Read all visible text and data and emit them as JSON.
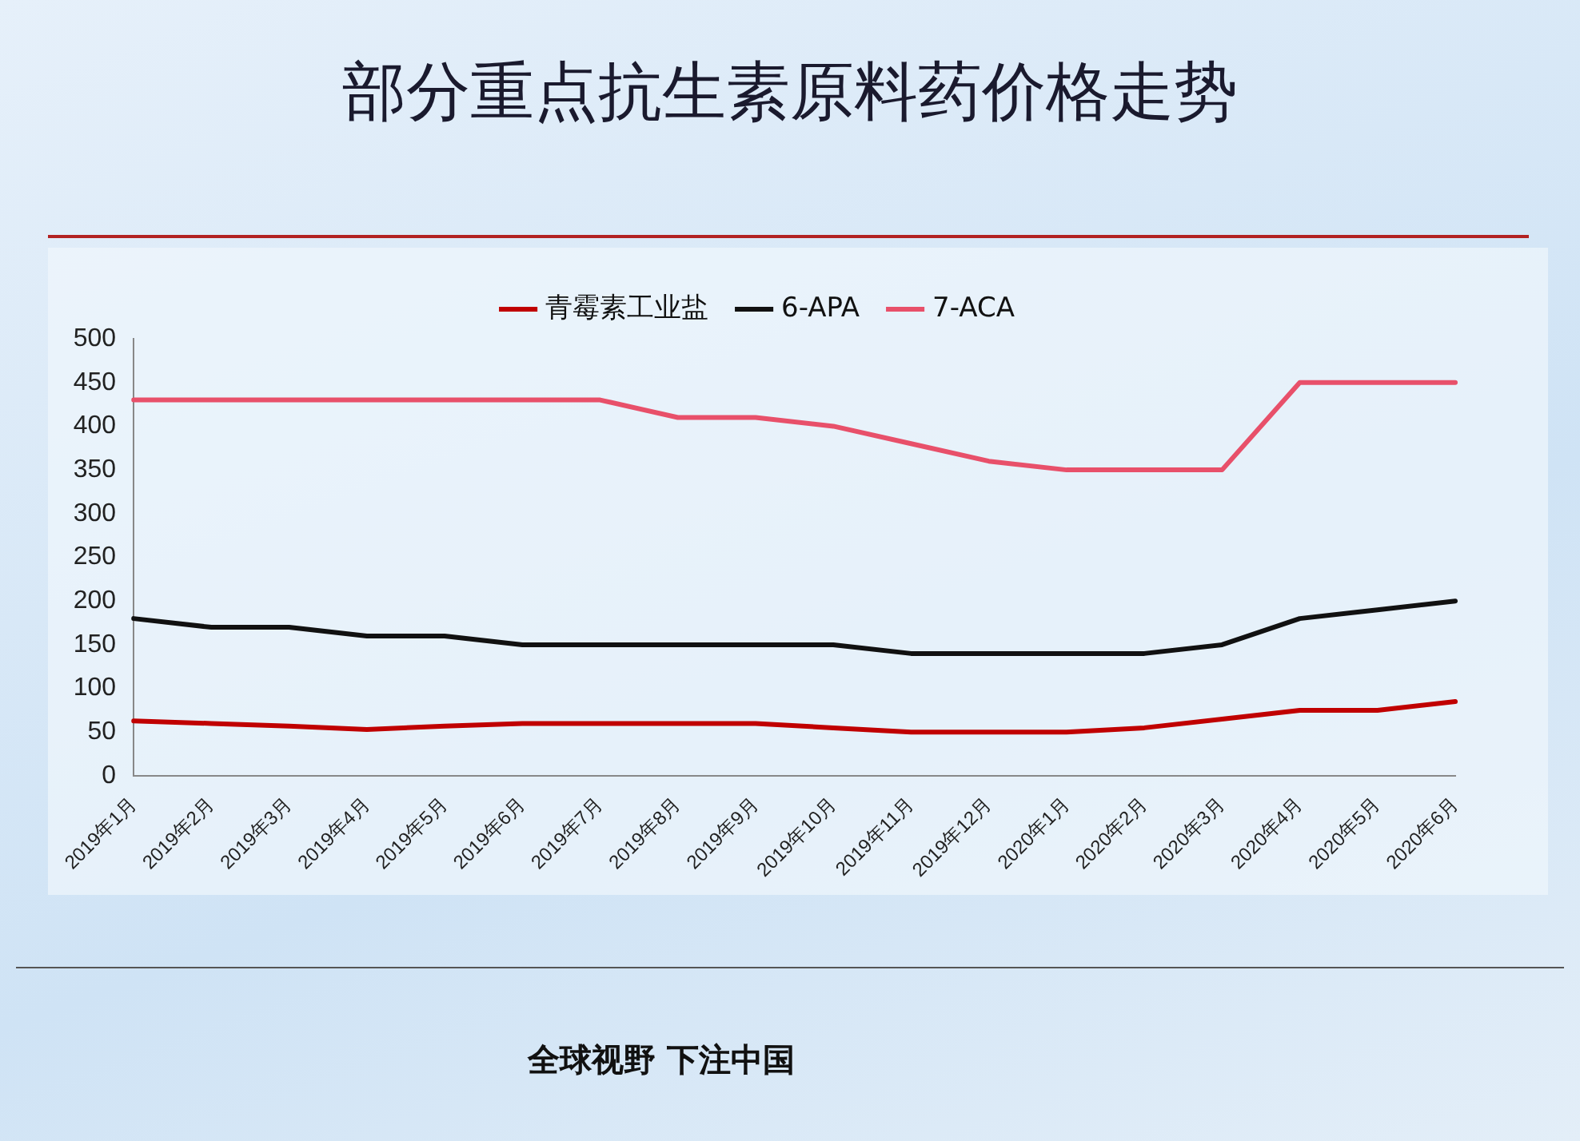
{
  "chart_data": {
    "type": "line",
    "title": "部分重点抗生素原料药价格走势",
    "categories": [
      "2019年1月",
      "2019年2月",
      "2019年3月",
      "2019年4月",
      "2019年5月",
      "2019年6月",
      "2019年7月",
      "2019年8月",
      "2019年9月",
      "2019年10月",
      "2019年11月",
      "2019年12月",
      "2020年1月",
      "2020年2月",
      "2020年3月",
      "2020年4月",
      "2020年5月",
      "2020年6月"
    ],
    "series": [
      {
        "name": "青霉素工业盐",
        "color": "#c00000",
        "values": [
          63,
          60,
          57,
          53,
          57,
          60,
          60,
          60,
          60,
          55,
          50,
          50,
          50,
          55,
          65,
          75,
          75,
          85
        ]
      },
      {
        "name": "6-APA",
        "color": "#111111",
        "values": [
          180,
          170,
          170,
          160,
          160,
          150,
          150,
          150,
          150,
          150,
          140,
          140,
          140,
          140,
          150,
          180,
          190,
          200
        ]
      },
      {
        "name": "7-ACA",
        "color": "#e8506a",
        "values": [
          430,
          430,
          430,
          430,
          430,
          430,
          430,
          410,
          410,
          400,
          380,
          360,
          350,
          350,
          350,
          450,
          450,
          450
        ]
      }
    ],
    "ylim": [
      0,
      500
    ],
    "yticks": [
      0,
      50,
      100,
      150,
      200,
      250,
      300,
      350,
      400,
      450,
      500
    ],
    "grid": false,
    "legend": "top",
    "marker": "none",
    "line_style": "solid",
    "annotations": [
      "全球视野 下注中国"
    ]
  }
}
